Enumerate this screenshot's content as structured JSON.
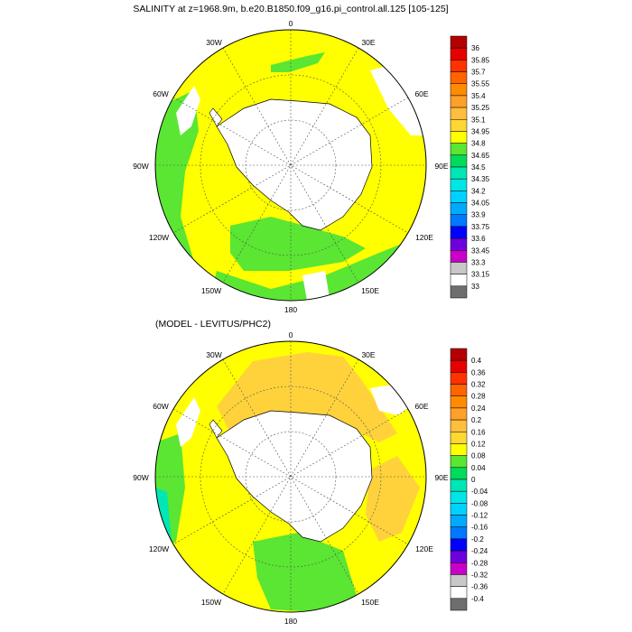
{
  "panels": [
    {
      "title": "SALINITY at z=1968.9m, b.e20.B1850.f09_g16.pi_control.all.125 [105-125]",
      "lon_labels": {
        "top": "0",
        "tr": "30E",
        "r1": "60E",
        "r": "90E",
        "br1": "120E",
        "br": "150E",
        "bottom": "180",
        "bl": "150W",
        "bl1": "120W",
        "l": "90W",
        "tl1": "60W",
        "tl": "30W"
      },
      "colorbar": {
        "labels": [
          "36",
          "35.85",
          "35.7",
          "35.55",
          "35.4",
          "35.25",
          "35.1",
          "34.95",
          "34.8",
          "34.65",
          "34.5",
          "34.35",
          "34.2",
          "34.05",
          "33.9",
          "33.75",
          "33.6",
          "33.45",
          "33.3",
          "33.15",
          "33"
        ],
        "colors": [
          "#b40000",
          "#e60000",
          "#ff3200",
          "#ff6400",
          "#ff8c00",
          "#ffa028",
          "#ffbe3c",
          "#ffd732",
          "#ffff00",
          "#5ae632",
          "#00dc5a",
          "#00e6b4",
          "#00e6e6",
          "#00d2ff",
          "#00aaff",
          "#0078ff",
          "#0000ff",
          "#6e00dc",
          "#c800c8",
          "#c8c8c8",
          "#ffffff",
          "#6e6e6e"
        ]
      }
    },
    {
      "title": "(MODEL - LEVITUS/PHC2)",
      "lon_labels": {
        "top": "0",
        "tr": "30E",
        "r1": "60E",
        "r": "90E",
        "br1": "120E",
        "br": "150E",
        "bottom": "180",
        "bl": "150W",
        "bl1": "120W",
        "l": "90W",
        "tl1": "60W",
        "tl": "30W"
      },
      "colorbar": {
        "labels": [
          "0.4",
          "0.36",
          "0.32",
          "0.28",
          "0.24",
          "0.2",
          "0.16",
          "0.12",
          "0.08",
          "0.04",
          "0",
          "-0.04",
          "-0.08",
          "-0.12",
          "-0.16",
          "-0.2",
          "-0.24",
          "-0.28",
          "-0.32",
          "-0.36",
          "-0.4"
        ],
        "colors": [
          "#b40000",
          "#e60000",
          "#ff3200",
          "#ff6400",
          "#ff8c00",
          "#ffa028",
          "#ffbe3c",
          "#ffd732",
          "#ffff00",
          "#5ae632",
          "#00dc5a",
          "#00e6b4",
          "#00e6e6",
          "#00d2ff",
          "#00aaff",
          "#0078ff",
          "#0000ff",
          "#6e00dc",
          "#c800c8",
          "#c8c8c8",
          "#ffffff",
          "#6e6e6e"
        ]
      }
    }
  ],
  "colors": {
    "yellow": "#ffff00",
    "green": "#5ae632",
    "orange": "#ffd23c",
    "teal": "#00e6b4",
    "land": "#ffffff"
  }
}
